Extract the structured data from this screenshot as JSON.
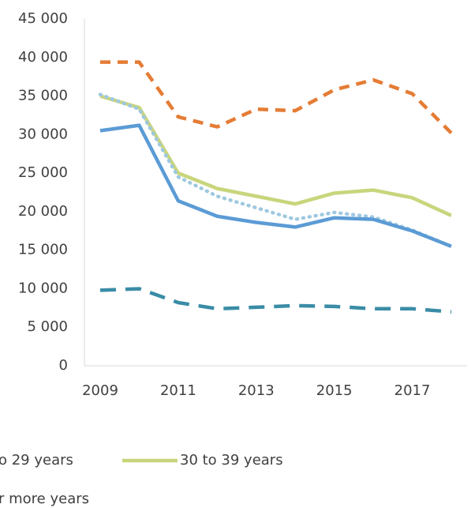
{
  "chart_data": {
    "type": "line",
    "x": [
      2009,
      2010,
      2011,
      2012,
      2013,
      2014,
      2015,
      2016,
      2017,
      2018
    ],
    "xlim": [
      2009,
      2018
    ],
    "xticks": [
      2009,
      2011,
      2013,
      2015,
      2017
    ],
    "ylim": [
      0,
      45000
    ],
    "yticks": [
      0,
      {
        "value": 5000,
        "label": "5 000"
      },
      {
        "value": 10000,
        "label": "10 000"
      },
      {
        "value": 15000,
        "label": "15 000"
      },
      {
        "value": 20000,
        "label": "20 000"
      },
      {
        "value": 25000,
        "label": "25 000"
      },
      {
        "value": 30000,
        "label": "30 000"
      },
      {
        "value": 35000,
        "label": "35 000"
      },
      {
        "value": 40000,
        "label": "40 000"
      },
      {
        "value": 45000,
        "label": "45 000"
      }
    ],
    "series": [
      {
        "color": "#e57c35",
        "dash": "dashed",
        "values": [
          39400,
          39400,
          32300,
          31000,
          33300,
          33100,
          35800,
          37100,
          35300,
          30200
        ]
      },
      {
        "name": "30 to 39 years",
        "color": "#c9d57c",
        "dash": "solid",
        "values": [
          35000,
          33500,
          25000,
          23000,
          22000,
          21000,
          22400,
          22800,
          21800,
          19500
        ]
      },
      {
        "name": "o 29 years",
        "color": "#9ec8e0",
        "dash": "dotted",
        "values": [
          35200,
          33300,
          24500,
          22000,
          20500,
          19000,
          19900,
          19300,
          17600,
          15500
        ]
      },
      {
        "color": "#5b9bd5",
        "dash": "solid",
        "values": [
          30500,
          31200,
          21400,
          19400,
          18600,
          18000,
          19200,
          19000,
          17500,
          15500
        ]
      },
      {
        "name": "r more years",
        "color": "#3a8ca6",
        "dash": "longdash",
        "values": [
          9800,
          10000,
          8200,
          7400,
          7600,
          7800,
          7700,
          7400,
          7400,
          7000
        ]
      }
    ]
  }
}
